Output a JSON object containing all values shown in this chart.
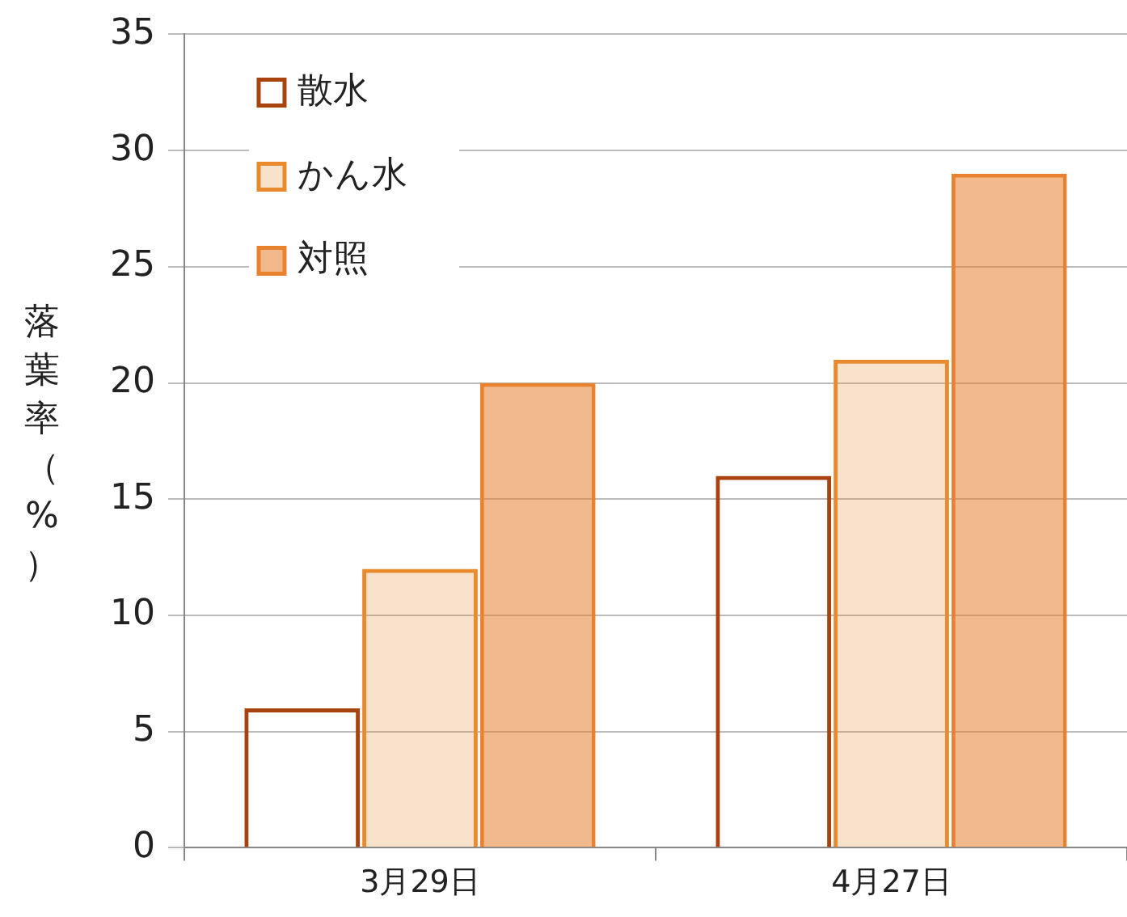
{
  "chart_data": {
    "type": "bar",
    "ylabel": "落葉率（%）",
    "categories": [
      "3月29日",
      "4月27日"
    ],
    "series": [
      {
        "name": "散水",
        "color": "#a8420e",
        "values": [
          6,
          16
        ]
      },
      {
        "name": "かん水",
        "color": "#e98a2f",
        "values": [
          12,
          21
        ]
      },
      {
        "name": "対照",
        "color": "#e8822e",
        "values": [
          20,
          29
        ]
      }
    ],
    "ylim": [
      0,
      35
    ],
    "yticks": [
      0,
      5,
      10,
      15,
      20,
      25,
      30,
      35
    ],
    "grid": "y",
    "legend": "top left"
  }
}
